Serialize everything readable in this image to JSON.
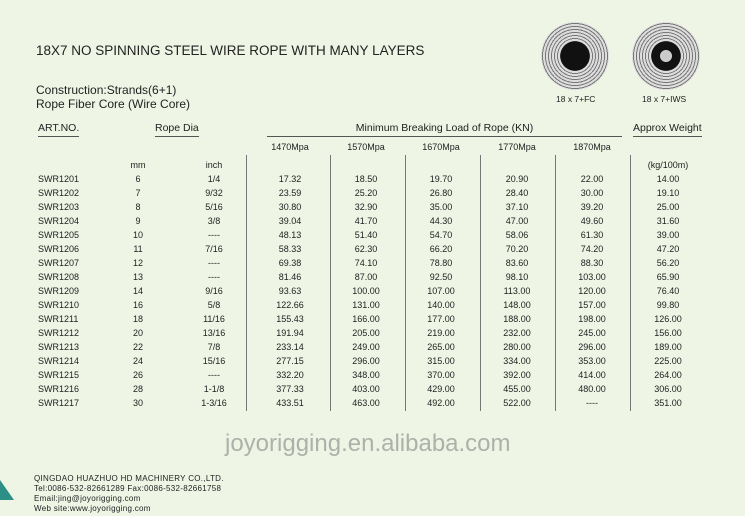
{
  "title": "18X7 NO SPINNING STEEL WIRE ROPE WITH MANY LAYERS",
  "construction": "Construction:Strands(6+1)",
  "core": "Rope Fiber Core (Wire Core)",
  "diagrams": [
    {
      "label": "18 x 7+FC"
    },
    {
      "label": "18 x 7+IWS"
    }
  ],
  "headers": {
    "art": "ART.NO.",
    "dia": "Rope Dia",
    "mbl": "Minimum Breaking Load of Rope (KN)",
    "weight": "Approx Weight"
  },
  "subheaders": {
    "mm": "mm",
    "inch": "inch",
    "grades": [
      "1470Mpa",
      "1570Mpa",
      "1670Mpa",
      "1770Mpa",
      "1870Mpa"
    ],
    "weight_unit": "(kg/100m)"
  },
  "rows": [
    [
      "SWR1201",
      "6",
      "1/4",
      "17.32",
      "18.50",
      "19.70",
      "20.90",
      "22.00",
      "14.00"
    ],
    [
      "SWR1202",
      "7",
      "9/32",
      "23.59",
      "25.20",
      "26.80",
      "28.40",
      "30.00",
      "19.10"
    ],
    [
      "SWR1203",
      "8",
      "5/16",
      "30.80",
      "32.90",
      "35.00",
      "37.10",
      "39.20",
      "25.00"
    ],
    [
      "SWR1204",
      "9",
      "3/8",
      "39.04",
      "41.70",
      "44.30",
      "47.00",
      "49.60",
      "31.60"
    ],
    [
      "SWR1205",
      "10",
      "----",
      "48.13",
      "51.40",
      "54.70",
      "58.06",
      "61.30",
      "39.00"
    ],
    [
      "SWR1206",
      "11",
      "7/16",
      "58.33",
      "62.30",
      "66.20",
      "70.20",
      "74.20",
      "47.20"
    ],
    [
      "SWR1207",
      "12",
      "----",
      "69.38",
      "74.10",
      "78.80",
      "83.60",
      "88.30",
      "56.20"
    ],
    [
      "SWR1208",
      "13",
      "----",
      "81.46",
      "87.00",
      "92.50",
      "98.10",
      "103.00",
      "65.90"
    ],
    [
      "SWR1209",
      "14",
      "9/16",
      "93.63",
      "100.00",
      "107.00",
      "113.00",
      "120.00",
      "76.40"
    ],
    [
      "SWR1210",
      "16",
      "5/8",
      "122.66",
      "131.00",
      "140.00",
      "148.00",
      "157.00",
      "99.80"
    ],
    [
      "SWR1211",
      "18",
      "11/16",
      "155.43",
      "166.00",
      "177.00",
      "188.00",
      "198.00",
      "126.00"
    ],
    [
      "SWR1212",
      "20",
      "13/16",
      "191.94",
      "205.00",
      "219.00",
      "232.00",
      "245.00",
      "156.00"
    ],
    [
      "SWR1213",
      "22",
      "7/8",
      "233.14",
      "249.00",
      "265.00",
      "280.00",
      "296.00",
      "189.00"
    ],
    [
      "SWR1214",
      "24",
      "15/16",
      "277.15",
      "296.00",
      "315.00",
      "334.00",
      "353.00",
      "225.00"
    ],
    [
      "SWR1215",
      "26",
      "----",
      "332.20",
      "348.00",
      "370.00",
      "392.00",
      "414.00",
      "264.00"
    ],
    [
      "SWR1216",
      "28",
      "1-1/8",
      "377.33",
      "403.00",
      "429.00",
      "455.00",
      "480.00",
      "306.00"
    ],
    [
      "SWR1217",
      "30",
      "1-3/16",
      "433.51",
      "463.00",
      "492.00",
      "522.00",
      "----",
      "351.00"
    ]
  ],
  "watermark": "joyorigging.en.alibaba.com",
  "footer": {
    "company": "QINGDAO HUAZHUO HD MACHINERY CO.,LTD.",
    "tel": "Tel:0086-532-82661289  Fax:0086-532-82661758",
    "email": "Email:jing@joyorigging.com",
    "web": "Web site:www.joyorigging.com"
  }
}
